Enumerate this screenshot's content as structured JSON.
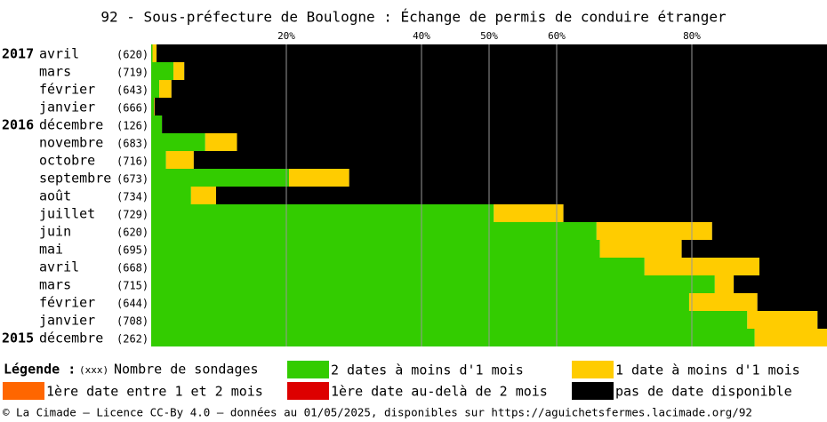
{
  "chart_data": {
    "type": "stacked-barh",
    "title": "92 - Sous-préfecture de Boulogne : Échange de permis de conduire étranger",
    "years": [
      "2017",
      null,
      null,
      null,
      "2016",
      null,
      null,
      null,
      null,
      null,
      null,
      null,
      null,
      null,
      null,
      null,
      "2015"
    ],
    "categories": [
      "avril",
      "mars",
      "février",
      "janvier",
      "décembre",
      "novembre",
      "octobre",
      "septembre",
      "août",
      "juillet",
      "juin",
      "mai",
      "avril",
      "mars",
      "février",
      "janvier",
      "décembre"
    ],
    "count_labels": [
      "(620)",
      "(719)",
      "(643)",
      "(666)",
      "(126)",
      "(683)",
      "(716)",
      "(673)",
      "(734)",
      "(729)",
      "(620)",
      "(695)",
      "(668)",
      "(715)",
      "(644)",
      "(708)",
      "(262)"
    ],
    "xlim": [
      0,
      100
    ],
    "xticks": [
      {
        "value": 20,
        "label": "20%"
      },
      {
        "value": 40,
        "label": "40%"
      },
      {
        "value": 50,
        "label": "50%"
      },
      {
        "value": 60,
        "label": "60%"
      },
      {
        "value": 80,
        "label": "80%"
      }
    ],
    "legend_title": "Légende :",
    "count_legend_symbol": "(xxx)",
    "count_legend_text": "Nombre de sondages",
    "series": [
      {
        "name": "2 dates à moins d'1 mois",
        "color": "#33cc00",
        "values": [
          0.2,
          3.3,
          1.2,
          0.4,
          1.6,
          8.0,
          2.2,
          20.4,
          5.9,
          50.7,
          65.9,
          66.4,
          73.0,
          83.4,
          79.6,
          88.2,
          89.3
        ]
      },
      {
        "name": "1 date à moins d'1 mois",
        "color": "#ffcc00",
        "values": [
          0.6,
          1.6,
          1.8,
          0.1,
          0,
          4.7,
          4.1,
          8.9,
          3.7,
          10.3,
          17.1,
          12.1,
          17.0,
          2.8,
          10.1,
          10.4,
          10.7
        ]
      },
      {
        "name": "1ère date entre 1 et 2 mois",
        "color": "#ff6600",
        "values": [
          0,
          0,
          0,
          0,
          0,
          0,
          0,
          0,
          0,
          0,
          0,
          0,
          0,
          0,
          0,
          0,
          0
        ]
      },
      {
        "name": "1ère date au-delà de 2 mois",
        "color": "#dd0000",
        "values": [
          0,
          0,
          0,
          0,
          0,
          0,
          0,
          0,
          0,
          0,
          0,
          0,
          0,
          0,
          0,
          0,
          0
        ]
      },
      {
        "name": "pas de date disponible",
        "color": "#000000",
        "values": [
          99.2,
          95.1,
          97.0,
          99.5,
          98.4,
          87.3,
          93.7,
          70.7,
          90.4,
          39.0,
          17.0,
          21.5,
          10.0,
          13.8,
          10.3,
          1.4,
          0
        ]
      }
    ],
    "footer": "© La Cimade — Licence CC-By 4.0 — données au 01/05/2025, disponibles sur https://aguichetsfermes.lacimade.org/92"
  }
}
